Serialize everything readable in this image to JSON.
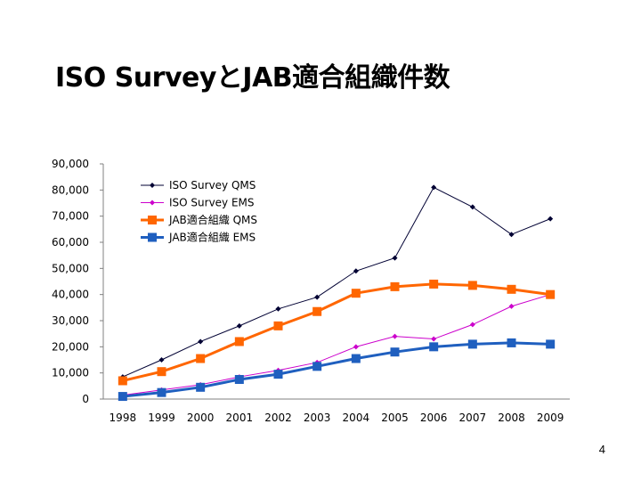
{
  "slide": {
    "title": "ISO SurveyとJAB適合組織件数",
    "page_number": "4"
  },
  "chart_data": {
    "type": "line",
    "title": "",
    "xlabel": "",
    "ylabel": "",
    "ylim": [
      0,
      90000
    ],
    "yticks": [
      0,
      10000,
      20000,
      30000,
      40000,
      50000,
      60000,
      70000,
      80000,
      90000
    ],
    "ytick_labels": [
      "0",
      "10,000",
      "20,000",
      "30,000",
      "40,000",
      "50,000",
      "60,000",
      "70,000",
      "80,000",
      "90,000"
    ],
    "categories": [
      "1998",
      "1999",
      "2000",
      "2001",
      "2002",
      "2003",
      "2004",
      "2005",
      "2006",
      "2007",
      "2008",
      "2009"
    ],
    "legend_position": "top-left",
    "series": [
      {
        "name": "ISO Survey QMS",
        "color": "#000033",
        "marker": "diamond",
        "weight": "thin",
        "values": [
          8500,
          15000,
          22000,
          28000,
          34500,
          39000,
          49000,
          54000,
          81000,
          73500,
          63000,
          69000
        ]
      },
      {
        "name": "ISO Survey EMS",
        "color": "#cc00cc",
        "marker": "diamond",
        "weight": "thin",
        "values": [
          1500,
          3500,
          5500,
          8500,
          11000,
          14000,
          20000,
          24000,
          23000,
          28500,
          35500,
          40000
        ]
      },
      {
        "name": "JAB適合組織 QMS",
        "color": "#ff6600",
        "marker": "square",
        "weight": "thick",
        "values": [
          7000,
          10500,
          15500,
          22000,
          28000,
          33500,
          40500,
          43000,
          44000,
          43500,
          42000,
          40000
        ]
      },
      {
        "name": "JAB適合組織 EMS",
        "color": "#1f5fbf",
        "marker": "square",
        "weight": "thick",
        "values": [
          1000,
          2500,
          4500,
          7500,
          9500,
          12500,
          15500,
          18000,
          20000,
          21000,
          21500,
          21000
        ]
      }
    ]
  }
}
